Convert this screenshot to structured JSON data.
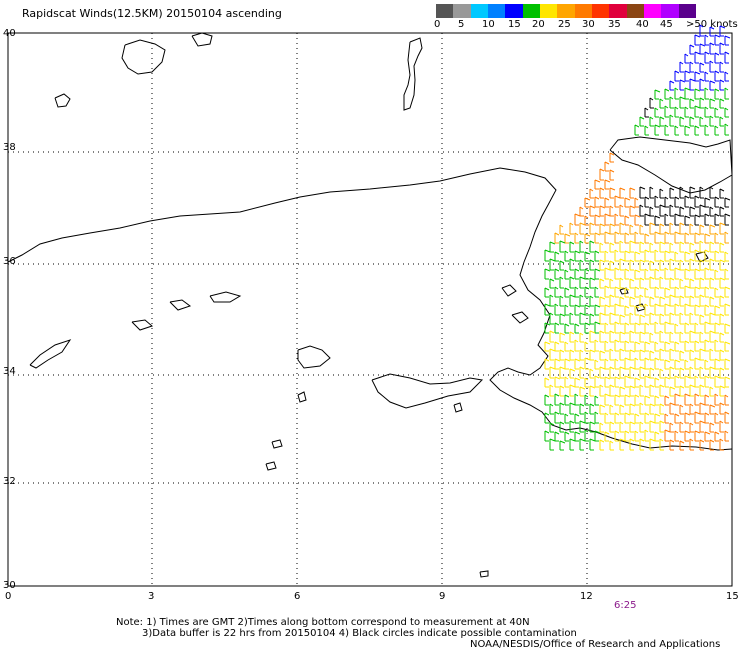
{
  "title": "Rapidscat Winds(12.5KM) 20150104 ascending",
  "wind_scale": {
    "labels": [
      "0",
      "5",
      "10",
      "15",
      "20",
      "25",
      "30",
      "35",
      "40",
      "45",
      ">50 knots"
    ],
    "colors": [
      "#555555",
      "#999999",
      "#00c8ff",
      "#0080ff",
      "#0000ff",
      "#00c000",
      "#ffe600",
      "#ffa500",
      "#ff7a00",
      "#ff3300",
      "#e0003c",
      "#8b4513",
      "#ff00ff",
      "#b000ff",
      "#5a008c"
    ]
  },
  "axes": {
    "latitudes": [
      "40",
      "38",
      "36",
      "34",
      "32",
      "30"
    ],
    "longitudes": [
      "0",
      "3",
      "6",
      "9",
      "12",
      "15"
    ],
    "lat_range": [
      30,
      40
    ],
    "lon_range": [
      0,
      15
    ],
    "grid": "dotted"
  },
  "timestamp": "6:25",
  "notes": {
    "line1": "Note: 1) Times are GMT 2)Times along bottom correspond to measurement at 40N",
    "line2": "3)Data buffer is 22 hrs from 20150104 4) Black circles indicate possible contamination",
    "line3": "NOAA/NESDIS/Office of Research and Applications"
  }
}
